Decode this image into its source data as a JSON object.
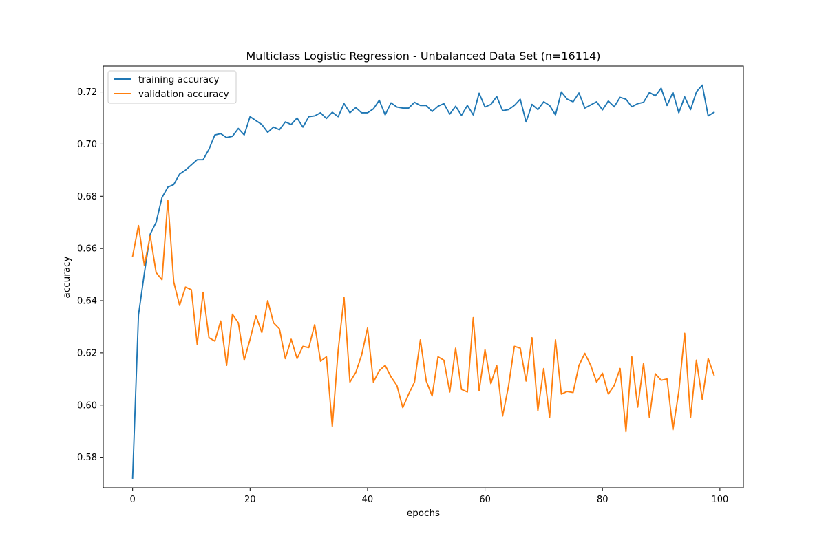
{
  "chart_data": {
    "type": "line",
    "title": "Multiclass Logistic Regression - Unbalanced Data Set (n=16114)",
    "xlabel": "epochs",
    "ylabel": "accuracy",
    "xlim": [
      -5,
      104
    ],
    "ylim": [
      0.5683,
      0.7299
    ],
    "xticks": [
      0,
      20,
      40,
      60,
      80,
      100
    ],
    "yticks": [
      0.58,
      0.6,
      0.62,
      0.64,
      0.66,
      0.68,
      0.7,
      0.72
    ],
    "xtick_labels": [
      "0",
      "20",
      "40",
      "60",
      "80",
      "100"
    ],
    "ytick_labels": [
      "0.58",
      "0.60",
      "0.62",
      "0.64",
      "0.66",
      "0.68",
      "0.70",
      "0.72"
    ],
    "grid": false,
    "legend_position": "top-left",
    "series": [
      {
        "name": "training accuracy",
        "color": "#1f77b4",
        "values": [
          0.572,
          0.6345,
          0.6505,
          0.6655,
          0.67,
          0.6795,
          0.6835,
          0.6845,
          0.6885,
          0.69,
          0.692,
          0.694,
          0.694,
          0.698,
          0.7035,
          0.704,
          0.7025,
          0.703,
          0.706,
          0.7035,
          0.7105,
          0.709,
          0.7075,
          0.7045,
          0.7065,
          0.7055,
          0.7085,
          0.7075,
          0.71,
          0.7065,
          0.7105,
          0.7108,
          0.712,
          0.7098,
          0.7122,
          0.7105,
          0.7155,
          0.712,
          0.714,
          0.712,
          0.712,
          0.7135,
          0.7168,
          0.7112,
          0.7158,
          0.7142,
          0.7138,
          0.7138,
          0.716,
          0.7148,
          0.7148,
          0.7125,
          0.7145,
          0.7155,
          0.7115,
          0.7145,
          0.711,
          0.7148,
          0.7112,
          0.7195,
          0.7142,
          0.7152,
          0.7182,
          0.7128,
          0.7132,
          0.7148,
          0.7172,
          0.7085,
          0.7152,
          0.7132,
          0.7162,
          0.7148,
          0.7112,
          0.72,
          0.7172,
          0.7162,
          0.7196,
          0.7138,
          0.715,
          0.7162,
          0.7131,
          0.7165,
          0.7143,
          0.7179,
          0.7172,
          0.7143,
          0.7155,
          0.716,
          0.7198,
          0.7185,
          0.7214,
          0.7148,
          0.7198,
          0.712,
          0.7181,
          0.7132,
          0.72,
          0.7226,
          0.7108,
          0.7122
        ]
      },
      {
        "name": "validation accuracy",
        "color": "#ff7f0e",
        "values": [
          0.657,
          0.6688,
          0.6535,
          0.6648,
          0.6508,
          0.648,
          0.6785,
          0.6472,
          0.6382,
          0.6452,
          0.6442,
          0.6232,
          0.6432,
          0.6258,
          0.6245,
          0.6322,
          0.6152,
          0.6348,
          0.6315,
          0.6172,
          0.6252,
          0.6342,
          0.6278,
          0.64,
          0.6315,
          0.6292,
          0.6178,
          0.6252,
          0.6178,
          0.6225,
          0.622,
          0.6308,
          0.6168,
          0.6185,
          0.5918,
          0.621,
          0.6412,
          0.6088,
          0.6125,
          0.6192,
          0.6295,
          0.6088,
          0.6132,
          0.6152,
          0.6108,
          0.6075,
          0.599,
          0.6042,
          0.6088,
          0.625,
          0.6092,
          0.6035,
          0.6185,
          0.6172,
          0.605,
          0.6218,
          0.606,
          0.605,
          0.6335,
          0.6055,
          0.6212,
          0.6082,
          0.6152,
          0.5958,
          0.6072,
          0.6225,
          0.6218,
          0.6092,
          0.6258,
          0.5978,
          0.614,
          0.5952,
          0.625,
          0.6042,
          0.6052,
          0.6048,
          0.6152,
          0.6198,
          0.6152,
          0.6088,
          0.6122,
          0.6042,
          0.6075,
          0.614,
          0.5898,
          0.6185,
          0.5992,
          0.616,
          0.5952,
          0.612,
          0.6095,
          0.61,
          0.5905,
          0.6052,
          0.6275,
          0.5952,
          0.6172,
          0.6022,
          0.6178,
          0.6115
        ]
      }
    ]
  }
}
